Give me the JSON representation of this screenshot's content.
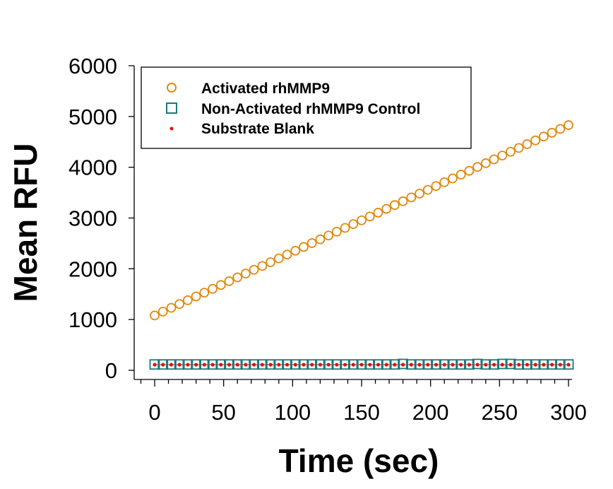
{
  "chart_data": {
    "type": "scatter",
    "title": "",
    "xlabel": "Time (sec)",
    "ylabel": "Mean RFU",
    "xlim": [
      -15,
      310
    ],
    "ylim": [
      -180,
      6000
    ],
    "xticks": [
      0,
      50,
      100,
      150,
      200,
      250,
      300
    ],
    "xtick_labels": [
      "0",
      "50",
      "100",
      "150",
      "200",
      "250",
      "300"
    ],
    "yticks": [
      0,
      1000,
      2000,
      3000,
      4000,
      5000,
      6000
    ],
    "ytick_labels": [
      "0",
      "1000",
      "2000",
      "3000",
      "4000",
      "5000",
      "6000"
    ],
    "grid": false,
    "legend_position": "top-left",
    "x": [
      0,
      6,
      12,
      18,
      24,
      30,
      36,
      42,
      48,
      54,
      60,
      66,
      72,
      78,
      84,
      90,
      96,
      102,
      108,
      114,
      120,
      126,
      132,
      138,
      144,
      150,
      156,
      162,
      168,
      174,
      180,
      186,
      192,
      198,
      204,
      210,
      216,
      222,
      228,
      234,
      240,
      246,
      252,
      258,
      264,
      270,
      276,
      282,
      288,
      294,
      300
    ],
    "series": [
      {
        "name": "Activated rhMMP9",
        "marker": "circle",
        "color": "#e08a10",
        "values": [
          1080,
          1155,
          1230,
          1305,
          1380,
          1455,
          1530,
          1605,
          1680,
          1755,
          1830,
          1905,
          1980,
          2055,
          2130,
          2205,
          2280,
          2355,
          2430,
          2505,
          2580,
          2655,
          2730,
          2805,
          2880,
          2955,
          3030,
          3105,
          3180,
          3255,
          3330,
          3405,
          3480,
          3555,
          3630,
          3705,
          3780,
          3855,
          3930,
          4005,
          4080,
          4155,
          4230,
          4305,
          4380,
          4455,
          4530,
          4605,
          4680,
          4755,
          4830
        ]
      },
      {
        "name": "Non-Activated rhMMP9 Control",
        "marker": "square",
        "color": "#1a7a78",
        "values": [
          115,
          115,
          115,
          115,
          115,
          115,
          115,
          115,
          115,
          115,
          115,
          115,
          115,
          115,
          115,
          115,
          115,
          115,
          115,
          115,
          115,
          115,
          115,
          115,
          115,
          115,
          115,
          115,
          115,
          115,
          125,
          115,
          115,
          115,
          115,
          115,
          115,
          115,
          115,
          125,
          115,
          115,
          125,
          125,
          115,
          115,
          115,
          115,
          115,
          115,
          115
        ]
      },
      {
        "name": "Substrate Blank",
        "marker": "dot",
        "color": "#e01010",
        "values": [
          110,
          110,
          110,
          110,
          110,
          110,
          110,
          110,
          110,
          110,
          110,
          110,
          110,
          110,
          110,
          110,
          110,
          110,
          110,
          110,
          110,
          110,
          110,
          110,
          110,
          110,
          110,
          110,
          110,
          110,
          110,
          110,
          110,
          110,
          110,
          110,
          110,
          110,
          110,
          110,
          110,
          110,
          110,
          110,
          110,
          110,
          110,
          110,
          110,
          110,
          110
        ]
      }
    ]
  }
}
